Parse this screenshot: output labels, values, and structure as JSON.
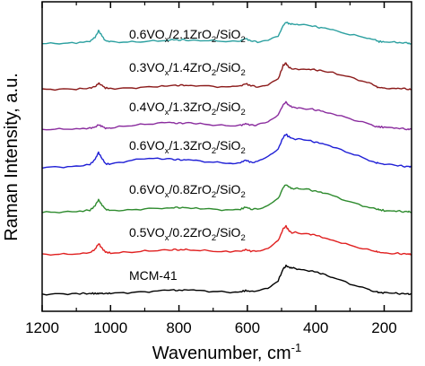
{
  "chart_data": {
    "type": "line",
    "xlabel": "Wavenumber, cm",
    "xlabel_sup": "-1",
    "ylabel": "Raman Intensity, a.u.",
    "xlim": [
      1200,
      120
    ],
    "x_reversed": true,
    "x_ticks": [
      1200,
      1000,
      800,
      600,
      400,
      200
    ],
    "x_tick_labels": [
      "1200",
      "1000",
      "800",
      "600",
      "400",
      "200"
    ],
    "y_ticks_shown": false,
    "grid": false,
    "x": [
      1200,
      1150,
      1100,
      1060,
      1045,
      1035,
      1028,
      1015,
      1000,
      950,
      900,
      850,
      820,
      800,
      780,
      750,
      700,
      650,
      620,
      605,
      590,
      570,
      540,
      510,
      495,
      487,
      480,
      470,
      450,
      420,
      400,
      380,
      350,
      300,
      250,
      225,
      215,
      200,
      170,
      150,
      130,
      120
    ],
    "series": [
      {
        "label_parts": [
          [
            "0.6VO",
            ""
          ],
          [
            "x",
            "sub"
          ],
          [
            "/2.1ZrO",
            ""
          ],
          [
            "2",
            "sub"
          ],
          [
            "/SiO",
            ""
          ],
          [
            "2",
            "sub"
          ]
        ],
        "color": "#2ca0a0",
        "values": [
          0.02,
          0.04,
          0.06,
          0.18,
          0.45,
          0.88,
          0.62,
          0.22,
          0.14,
          0.12,
          0.16,
          0.22,
          0.28,
          0.26,
          0.27,
          0.24,
          0.21,
          0.16,
          0.22,
          0.36,
          0.2,
          0.14,
          0.22,
          0.5,
          1.22,
          1.42,
          1.36,
          1.3,
          1.26,
          1.2,
          1.14,
          1.04,
          0.9,
          0.62,
          0.4,
          0.24,
          0.16,
          0.14,
          0.11,
          0.08,
          0.05,
          0.03
        ]
      },
      {
        "label_parts": [
          [
            "0.3VO",
            ""
          ],
          [
            "x",
            "sub"
          ],
          [
            "/1.4ZrO",
            ""
          ],
          [
            "2",
            "sub"
          ],
          [
            "/SiO",
            ""
          ],
          [
            "2",
            "sub"
          ]
        ],
        "color": "#8b1a1a",
        "values": [
          0.02,
          0.03,
          0.05,
          0.1,
          0.22,
          0.42,
          0.32,
          0.12,
          0.08,
          0.1,
          0.16,
          0.24,
          0.3,
          0.28,
          0.3,
          0.28,
          0.22,
          0.16,
          0.24,
          0.4,
          0.26,
          0.2,
          0.34,
          0.7,
          1.6,
          1.74,
          1.5,
          1.36,
          1.36,
          1.34,
          1.3,
          1.24,
          1.12,
          0.82,
          0.48,
          0.24,
          0.14,
          0.12,
          0.1,
          0.08,
          0.05,
          0.03
        ]
      },
      {
        "label_parts": [
          [
            "0.4VO",
            ""
          ],
          [
            "x",
            "sub"
          ],
          [
            "/1.3ZrO",
            ""
          ],
          [
            "2",
            "sub"
          ],
          [
            "/SiO",
            ""
          ],
          [
            "2",
            "sub"
          ]
        ],
        "color": "#8a2c9e",
        "values": [
          0.04,
          0.06,
          0.08,
          0.12,
          0.2,
          0.34,
          0.28,
          0.12,
          0.14,
          0.28,
          0.38,
          0.46,
          0.48,
          0.44,
          0.46,
          0.42,
          0.34,
          0.28,
          0.3,
          0.42,
          0.32,
          0.34,
          0.56,
          1.02,
          1.66,
          1.84,
          1.64,
          1.5,
          1.46,
          1.4,
          1.32,
          1.24,
          1.08,
          0.74,
          0.44,
          0.26,
          0.22,
          0.18,
          0.14,
          0.1,
          0.06,
          0.04
        ]
      },
      {
        "label_parts": [
          [
            "0.6VO",
            ""
          ],
          [
            "x",
            "sub"
          ],
          [
            "/1.3ZrO",
            ""
          ],
          [
            "2",
            "sub"
          ],
          [
            "/SiO",
            ""
          ],
          [
            "2",
            "sub"
          ]
        ],
        "color": "#1f1fd6",
        "values": [
          0.03,
          0.05,
          0.08,
          0.22,
          0.55,
          1.0,
          0.72,
          0.26,
          0.24,
          0.44,
          0.62,
          0.58,
          0.56,
          0.52,
          0.52,
          0.46,
          0.36,
          0.3,
          0.34,
          0.5,
          0.36,
          0.4,
          0.7,
          1.24,
          2.0,
          2.2,
          2.04,
          1.92,
          1.86,
          1.78,
          1.68,
          1.56,
          1.36,
          0.96,
          0.56,
          0.34,
          0.3,
          0.22,
          0.16,
          0.12,
          0.07,
          0.04
        ]
      },
      {
        "label_parts": [
          [
            "0.6VO",
            ""
          ],
          [
            "x",
            "sub"
          ],
          [
            "/0.8ZrO",
            ""
          ],
          [
            "2",
            "sub"
          ],
          [
            "/SiO",
            ""
          ],
          [
            "2",
            "sub"
          ]
        ],
        "color": "#2e8b2e",
        "values": [
          0.02,
          0.03,
          0.06,
          0.16,
          0.45,
          0.84,
          0.6,
          0.22,
          0.14,
          0.16,
          0.24,
          0.3,
          0.34,
          0.32,
          0.34,
          0.3,
          0.22,
          0.16,
          0.22,
          0.36,
          0.24,
          0.24,
          0.44,
          0.9,
          1.66,
          1.84,
          1.7,
          1.6,
          1.56,
          1.5,
          1.4,
          1.3,
          1.1,
          0.7,
          0.38,
          0.22,
          0.18,
          0.14,
          0.11,
          0.08,
          0.05,
          0.03
        ]
      },
      {
        "label_parts": [
          [
            "0.5VO",
            ""
          ],
          [
            "x",
            "sub"
          ],
          [
            "/0.2ZrO",
            ""
          ],
          [
            "2",
            "sub"
          ],
          [
            "/SiO",
            ""
          ],
          [
            "2",
            "sub"
          ]
        ],
        "color": "#e02020",
        "values": [
          0.02,
          0.03,
          0.06,
          0.14,
          0.36,
          0.74,
          0.52,
          0.18,
          0.12,
          0.16,
          0.24,
          0.3,
          0.34,
          0.32,
          0.34,
          0.3,
          0.24,
          0.18,
          0.22,
          0.34,
          0.24,
          0.24,
          0.44,
          0.92,
          1.7,
          1.88,
          1.62,
          1.46,
          1.44,
          1.38,
          1.28,
          1.16,
          0.96,
          0.62,
          0.34,
          0.2,
          0.16,
          0.12,
          0.1,
          0.07,
          0.05,
          0.03
        ]
      },
      {
        "label_parts": [
          [
            "MCM-41",
            ""
          ]
        ],
        "color": "#000000",
        "values": [
          0.0,
          0.02,
          0.04,
          0.05,
          0.05,
          0.06,
          0.05,
          0.05,
          0.06,
          0.1,
          0.16,
          0.22,
          0.26,
          0.26,
          0.26,
          0.24,
          0.18,
          0.14,
          0.16,
          0.24,
          0.18,
          0.2,
          0.4,
          0.9,
          1.66,
          1.86,
          1.8,
          1.72,
          1.64,
          1.56,
          1.46,
          1.34,
          1.12,
          0.68,
          0.34,
          0.18,
          0.12,
          0.08,
          0.06,
          0.04,
          0.02,
          0.01
        ]
      }
    ]
  }
}
